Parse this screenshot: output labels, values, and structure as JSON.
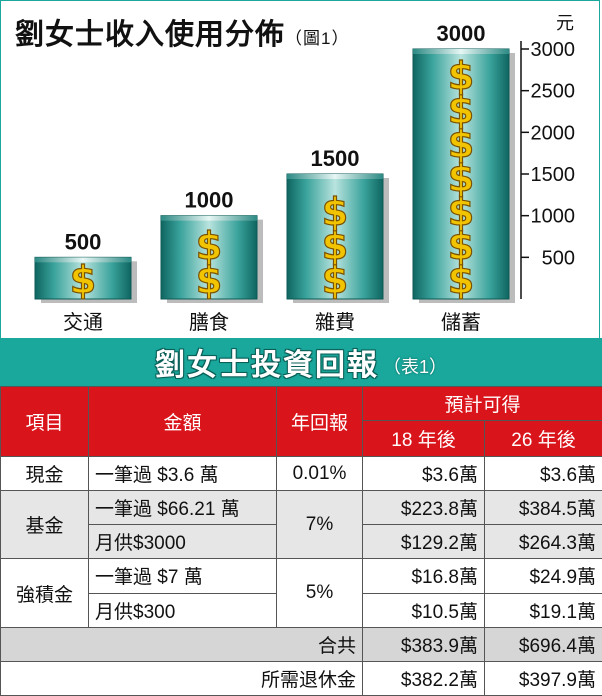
{
  "chart_data": {
    "type": "bar",
    "title": "劉女士收入使用分佈",
    "note": "（圖1）",
    "unit": "元",
    "categories": [
      "交通",
      "膳食",
      "雜費",
      "儲蓄"
    ],
    "values": [
      500,
      1000,
      1500,
      3000
    ],
    "data_labels": [
      "500",
      "1000",
      "1500",
      "3000"
    ],
    "ylim": [
      0,
      3000
    ],
    "yticks": [
      "500",
      "1000",
      "1500",
      "2000",
      "2500",
      "3000"
    ],
    "axis_position": "right",
    "bar_color": "#1f8a84",
    "symbol": "$",
    "symbol_color": "#f2c400"
  },
  "table": {
    "title": "劉女士投資回報",
    "note": "（表1）",
    "header_color": "#d9141b",
    "headers": {
      "item": "項目",
      "amount": "金額",
      "rate": "年回報",
      "expected": "預計可得",
      "y18": "18 年後",
      "y26": "26 年後"
    },
    "rows": [
      {
        "item": "現金",
        "amount": "一筆過 $3.6 萬",
        "rate": "0.01%",
        "y18": "$3.6萬",
        "y26": "$3.6萬"
      },
      {
        "item": "基金",
        "amount": "一筆過 $66.21 萬",
        "rate": "7%",
        "y18": "$223.8萬",
        "y26": "$384.5萬"
      },
      {
        "amount": "月供$3000",
        "y18": "$129.2萬",
        "y26": "$264.3萬"
      },
      {
        "item": "強積金",
        "amount": "一筆過 $7 萬",
        "rate": "5%",
        "y18": "$16.8萬",
        "y26": "$24.9萬"
      },
      {
        "amount": "月供$300",
        "y18": "$10.5萬",
        "y26": "$19.1萬"
      }
    ],
    "total": {
      "label": "合共",
      "y18": "$383.9萬",
      "y26": "$696.4萬"
    },
    "retirement": {
      "label": "所需退休金",
      "y18": "$382.2萬",
      "y26": "$397.9萬"
    }
  }
}
